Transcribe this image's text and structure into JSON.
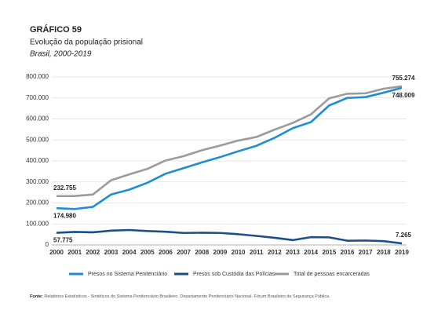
{
  "chart_data": {
    "type": "line",
    "title": "GRÁFICO 59",
    "subtitle": "Evolução da população prisional",
    "subtitle2": "Brasil, 2000-2019",
    "source_label": "Fonte:",
    "source": "Relatórios Estatísticos - Sintéticos do Sistema Penitenciário Brasileiro. Departamento Penitenciário Nacional. Fórum Brasileiro de Segurança Pública.",
    "categories": [
      "2000",
      "2001",
      "2002",
      "2003",
      "2004",
      "2005",
      "2006",
      "2007",
      "2008",
      "2009",
      "2010",
      "2011",
      "2012",
      "2013",
      "2014",
      "2015",
      "2016",
      "2017",
      "2018",
      "2019"
    ],
    "series": [
      {
        "name": "Presos no Sistema Penitenciário",
        "color": "#1b8fd2",
        "values": [
          174980,
          171000,
          181000,
          240000,
          263000,
          296000,
          339000,
          366000,
          393000,
          418000,
          446000,
          472000,
          510000,
          556000,
          585000,
          664000,
          700000,
          704000,
          725000,
          748009
        ],
        "value_labels": [
          "174.980",
          null,
          null,
          null,
          null,
          null,
          null,
          null,
          null,
          null,
          null,
          null,
          null,
          null,
          null,
          null,
          null,
          null,
          null,
          "748.009"
        ]
      },
      {
        "name": "Presos sob Custódia das Polícias",
        "color": "#1a4f8a",
        "values": [
          57775,
          62000,
          60000,
          68000,
          71000,
          66000,
          63000,
          57000,
          58000,
          57000,
          51000,
          43000,
          34000,
          23000,
          37000,
          36000,
          20000,
          21000,
          18000,
          7265
        ],
        "value_labels": [
          "57.775",
          null,
          null,
          null,
          null,
          null,
          null,
          null,
          null,
          null,
          null,
          null,
          null,
          null,
          null,
          null,
          null,
          null,
          null,
          "7.265"
        ]
      },
      {
        "name": "Total de pessoas encarceradas",
        "color": "#9b9b9b",
        "values": [
          232755,
          233000,
          240000,
          308000,
          336000,
          362000,
          402000,
          423000,
          451000,
          473000,
          497000,
          514000,
          549000,
          581000,
          622000,
          698000,
          720000,
          722000,
          744000,
          755274
        ],
        "value_labels": [
          "232.755",
          null,
          null,
          null,
          null,
          null,
          null,
          null,
          null,
          null,
          null,
          null,
          null,
          null,
          null,
          null,
          null,
          null,
          null,
          "755.274"
        ]
      }
    ],
    "ylim": [
      0,
      800000
    ],
    "yticks": [
      0,
      {
        "value": 100000,
        "label": "100.000"
      },
      {
        "value": 200000,
        "label": "200.000"
      },
      {
        "value": 300000,
        "label": "300.000"
      },
      {
        "value": 400000,
        "label": "400.000"
      },
      {
        "value": 500000,
        "label": "500.000"
      },
      {
        "value": 600000,
        "label": "600.000"
      },
      {
        "value": 700000,
        "label": "700.000"
      },
      {
        "value": 800000,
        "label": "800.000"
      }
    ],
    "grid": true
  }
}
